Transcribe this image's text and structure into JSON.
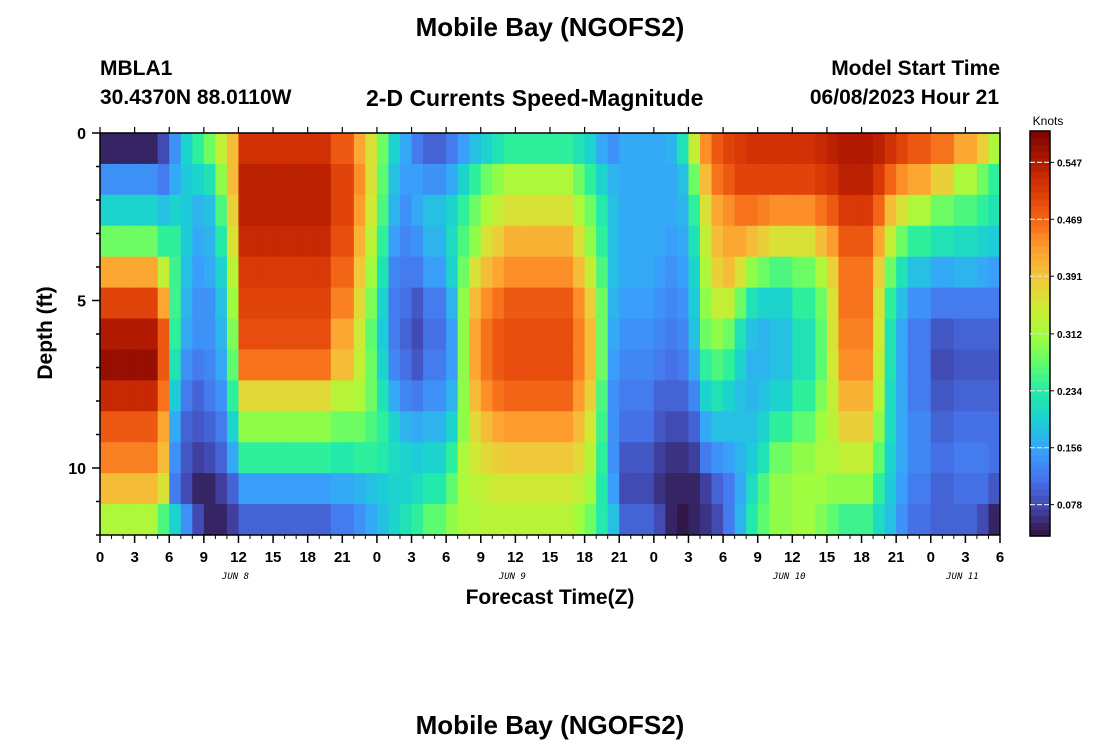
{
  "header": {
    "title": "Mobile Bay (NGOFS2)",
    "station_id": "MBLA1",
    "station_coords": "30.4370N  88.0110W",
    "chart_title": "2-D Currents Speed-Magnitude",
    "start_label": "Model Start Time",
    "start_value": "06/08/2023 Hour 21"
  },
  "footer": {
    "title": "Mobile Bay (NGOFS2)"
  },
  "colors": {
    "colormap": [
      "#30123b",
      "#4145ab",
      "#4675ed",
      "#39a2fc",
      "#1bcfd4",
      "#24eca6",
      "#61fc6c",
      "#a4fc3b",
      "#d1e834",
      "#f3c63a",
      "#fe9b2d",
      "#f36315",
      "#d93806",
      "#b11901",
      "#7a0402"
    ]
  },
  "chart_data": {
    "type": "heatmap",
    "title": "2-D Currents Speed-Magnitude",
    "xlabel": "Forecast Time(Z)",
    "ylabel": "Depth (ft)",
    "x_ticks": [
      "0",
      "3",
      "6",
      "9",
      "12",
      "15",
      "18",
      "21",
      "0",
      "3",
      "6",
      "9",
      "12",
      "15",
      "18",
      "21",
      "0",
      "3",
      "6",
      "9",
      "12",
      "15",
      "18",
      "21",
      "0",
      "3",
      "6"
    ],
    "date_labels": [
      {
        "label": "JUN 8",
        "hour": 12
      },
      {
        "label": "JUN 9",
        "hour": 36
      },
      {
        "label": "JUN 10",
        "hour": 60
      },
      {
        "label": "JUN 11",
        "hour": 75
      }
    ],
    "x_range": [
      0,
      78
    ],
    "y_ticks": [
      "0",
      "5",
      "10"
    ],
    "y_range": [
      0,
      12
    ],
    "colorbar": {
      "title": "Knots",
      "ticks": [
        "0.078",
        "0.156",
        "0.234",
        "0.312",
        "0.391",
        "0.469",
        "0.547"
      ],
      "range": [
        0.035,
        0.59
      ]
    },
    "depth_layers": 12,
    "hourly_columns": 78,
    "columns": [
      {
        "from": 0,
        "to": 5,
        "profile": [
          0.05,
          0.14,
          0.2,
          0.28,
          0.42,
          0.5,
          0.55,
          0.57,
          0.53,
          0.48,
          0.45,
          0.4,
          0.32
        ]
      },
      {
        "from": 5,
        "to": 6,
        "profile": [
          0.08,
          0.12,
          0.18,
          0.24,
          0.34,
          0.42,
          0.48,
          0.48,
          0.46,
          0.42,
          0.4,
          0.36,
          0.26
        ]
      },
      {
        "from": 6,
        "to": 7,
        "profile": [
          0.14,
          0.16,
          0.2,
          0.24,
          0.25,
          0.25,
          0.24,
          0.22,
          0.19,
          0.16,
          0.14,
          0.12,
          0.2
        ]
      },
      {
        "from": 7,
        "to": 8,
        "profile": [
          0.2,
          0.19,
          0.19,
          0.19,
          0.18,
          0.17,
          0.16,
          0.14,
          0.12,
          0.1,
          0.09,
          0.08,
          0.14
        ]
      },
      {
        "from": 8,
        "to": 9,
        "profile": [
          0.24,
          0.2,
          0.17,
          0.16,
          0.15,
          0.14,
          0.14,
          0.12,
          0.1,
          0.09,
          0.07,
          0.05,
          0.08
        ]
      },
      {
        "from": 9,
        "to": 10,
        "profile": [
          0.28,
          0.22,
          0.18,
          0.17,
          0.16,
          0.14,
          0.14,
          0.13,
          0.12,
          0.1,
          0.08,
          0.05,
          0.05
        ]
      },
      {
        "from": 10,
        "to": 11,
        "profile": [
          0.34,
          0.3,
          0.26,
          0.23,
          0.2,
          0.18,
          0.17,
          0.16,
          0.14,
          0.12,
          0.1,
          0.07,
          0.05
        ]
      },
      {
        "from": 11,
        "to": 12,
        "profile": [
          0.4,
          0.4,
          0.38,
          0.36,
          0.33,
          0.31,
          0.29,
          0.27,
          0.24,
          0.2,
          0.16,
          0.1,
          0.07
        ]
      },
      {
        "from": 12,
        "to": 20,
        "profile": [
          0.52,
          0.54,
          0.54,
          0.53,
          0.51,
          0.5,
          0.49,
          0.46,
          0.37,
          0.3,
          0.24,
          0.15,
          0.1
        ]
      },
      {
        "from": 20,
        "to": 22,
        "profile": [
          0.48,
          0.5,
          0.5,
          0.49,
          0.47,
          0.45,
          0.42,
          0.4,
          0.33,
          0.28,
          0.23,
          0.16,
          0.12
        ]
      },
      {
        "from": 22,
        "to": 23,
        "profile": [
          0.42,
          0.44,
          0.43,
          0.41,
          0.39,
          0.37,
          0.35,
          0.34,
          0.32,
          0.28,
          0.24,
          0.17,
          0.14
        ]
      },
      {
        "from": 23,
        "to": 24,
        "profile": [
          0.36,
          0.36,
          0.35,
          0.33,
          0.31,
          0.29,
          0.27,
          0.28,
          0.28,
          0.26,
          0.24,
          0.18,
          0.16
        ]
      },
      {
        "from": 24,
        "to": 25,
        "profile": [
          0.28,
          0.27,
          0.26,
          0.24,
          0.22,
          0.2,
          0.19,
          0.2,
          0.22,
          0.24,
          0.23,
          0.19,
          0.18
        ]
      },
      {
        "from": 25,
        "to": 26,
        "profile": [
          0.2,
          0.18,
          0.17,
          0.15,
          0.13,
          0.12,
          0.12,
          0.13,
          0.16,
          0.2,
          0.21,
          0.2,
          0.2
        ]
      },
      {
        "from": 26,
        "to": 27,
        "profile": [
          0.16,
          0.15,
          0.14,
          0.13,
          0.12,
          0.11,
          0.1,
          0.11,
          0.13,
          0.17,
          0.2,
          0.2,
          0.22
        ]
      },
      {
        "from": 27,
        "to": 28,
        "profile": [
          0.12,
          0.15,
          0.16,
          0.14,
          0.12,
          0.09,
          0.08,
          0.09,
          0.12,
          0.16,
          0.19,
          0.21,
          0.24
        ]
      },
      {
        "from": 28,
        "to": 30,
        "profile": [
          0.1,
          0.14,
          0.18,
          0.17,
          0.15,
          0.12,
          0.11,
          0.12,
          0.14,
          0.17,
          0.2,
          0.23,
          0.27
        ]
      },
      {
        "from": 30,
        "to": 31,
        "profile": [
          0.12,
          0.16,
          0.2,
          0.21,
          0.2,
          0.17,
          0.15,
          0.15,
          0.17,
          0.2,
          0.24,
          0.27,
          0.3
        ]
      },
      {
        "from": 31,
        "to": 32,
        "profile": [
          0.15,
          0.2,
          0.24,
          0.26,
          0.28,
          0.3,
          0.3,
          0.3,
          0.3,
          0.3,
          0.32,
          0.32,
          0.32
        ]
      },
      {
        "from": 32,
        "to": 33,
        "profile": [
          0.18,
          0.24,
          0.28,
          0.3,
          0.36,
          0.4,
          0.42,
          0.42,
          0.4,
          0.37,
          0.35,
          0.33,
          0.32
        ]
      },
      {
        "from": 33,
        "to": 34,
        "profile": [
          0.2,
          0.28,
          0.32,
          0.36,
          0.4,
          0.44,
          0.46,
          0.46,
          0.44,
          0.4,
          0.37,
          0.34,
          0.33
        ]
      },
      {
        "from": 34,
        "to": 35,
        "profile": [
          0.22,
          0.3,
          0.34,
          0.38,
          0.42,
          0.46,
          0.48,
          0.48,
          0.46,
          0.42,
          0.38,
          0.35,
          0.33
        ]
      },
      {
        "from": 35,
        "to": 41,
        "profile": [
          0.24,
          0.32,
          0.36,
          0.41,
          0.44,
          0.48,
          0.49,
          0.49,
          0.47,
          0.43,
          0.39,
          0.35,
          0.33
        ]
      },
      {
        "from": 41,
        "to": 42,
        "profile": [
          0.22,
          0.28,
          0.32,
          0.36,
          0.4,
          0.44,
          0.45,
          0.45,
          0.43,
          0.4,
          0.37,
          0.34,
          0.31
        ]
      },
      {
        "from": 42,
        "to": 43,
        "profile": [
          0.2,
          0.24,
          0.28,
          0.3,
          0.34,
          0.38,
          0.4,
          0.4,
          0.38,
          0.35,
          0.33,
          0.31,
          0.28
        ]
      },
      {
        "from": 43,
        "to": 44,
        "profile": [
          0.16,
          0.2,
          0.23,
          0.24,
          0.26,
          0.28,
          0.28,
          0.28,
          0.26,
          0.25,
          0.24,
          0.23,
          0.23
        ]
      },
      {
        "from": 44,
        "to": 45,
        "profile": [
          0.14,
          0.17,
          0.18,
          0.18,
          0.18,
          0.17,
          0.16,
          0.15,
          0.14,
          0.14,
          0.14,
          0.15,
          0.18
        ]
      },
      {
        "from": 45,
        "to": 48,
        "profile": [
          0.16,
          0.16,
          0.16,
          0.16,
          0.16,
          0.15,
          0.14,
          0.13,
          0.12,
          0.11,
          0.09,
          0.08,
          0.1
        ]
      },
      {
        "from": 48,
        "to": 49,
        "profile": [
          0.16,
          0.16,
          0.16,
          0.16,
          0.15,
          0.14,
          0.13,
          0.12,
          0.1,
          0.09,
          0.07,
          0.06,
          0.08
        ]
      },
      {
        "from": 49,
        "to": 50,
        "profile": [
          0.17,
          0.16,
          0.16,
          0.15,
          0.14,
          0.13,
          0.12,
          0.11,
          0.1,
          0.08,
          0.06,
          0.05,
          0.05
        ]
      },
      {
        "from": 50,
        "to": 51,
        "profile": [
          0.22,
          0.18,
          0.17,
          0.16,
          0.15,
          0.14,
          0.13,
          0.12,
          0.1,
          0.08,
          0.06,
          0.05,
          0.04
        ]
      },
      {
        "from": 51,
        "to": 52,
        "profile": [
          0.34,
          0.28,
          0.24,
          0.22,
          0.2,
          0.19,
          0.18,
          0.16,
          0.13,
          0.1,
          0.07,
          0.05,
          0.05
        ]
      },
      {
        "from": 52,
        "to": 53,
        "profile": [
          0.44,
          0.4,
          0.36,
          0.34,
          0.32,
          0.3,
          0.28,
          0.24,
          0.2,
          0.16,
          0.12,
          0.07,
          0.06
        ]
      },
      {
        "from": 53,
        "to": 54,
        "profile": [
          0.48,
          0.46,
          0.42,
          0.4,
          0.38,
          0.34,
          0.3,
          0.26,
          0.22,
          0.18,
          0.14,
          0.1,
          0.08
        ]
      },
      {
        "from": 54,
        "to": 55,
        "profile": [
          0.5,
          0.48,
          0.44,
          0.42,
          0.4,
          0.34,
          0.28,
          0.24,
          0.2,
          0.18,
          0.15,
          0.12,
          0.12
        ]
      },
      {
        "from": 55,
        "to": 56,
        "profile": [
          0.51,
          0.5,
          0.46,
          0.42,
          0.36,
          0.28,
          0.22,
          0.2,
          0.18,
          0.18,
          0.17,
          0.16,
          0.17
        ]
      },
      {
        "from": 56,
        "to": 57,
        "profile": [
          0.52,
          0.5,
          0.46,
          0.4,
          0.3,
          0.22,
          0.18,
          0.17,
          0.17,
          0.18,
          0.19,
          0.21,
          0.23
        ]
      },
      {
        "from": 57,
        "to": 58,
        "profile": [
          0.52,
          0.5,
          0.45,
          0.38,
          0.28,
          0.2,
          0.17,
          0.17,
          0.18,
          0.2,
          0.22,
          0.26,
          0.27
        ]
      },
      {
        "from": 58,
        "to": 60,
        "profile": [
          0.52,
          0.5,
          0.44,
          0.36,
          0.26,
          0.2,
          0.18,
          0.18,
          0.2,
          0.24,
          0.28,
          0.3,
          0.3
        ]
      },
      {
        "from": 60,
        "to": 62,
        "profile": [
          0.52,
          0.5,
          0.44,
          0.36,
          0.28,
          0.24,
          0.22,
          0.22,
          0.24,
          0.27,
          0.3,
          0.31,
          0.31
        ]
      },
      {
        "from": 62,
        "to": 63,
        "profile": [
          0.53,
          0.51,
          0.46,
          0.4,
          0.32,
          0.28,
          0.27,
          0.27,
          0.29,
          0.31,
          0.32,
          0.31,
          0.29
        ]
      },
      {
        "from": 63,
        "to": 64,
        "profile": [
          0.54,
          0.52,
          0.48,
          0.43,
          0.38,
          0.36,
          0.36,
          0.35,
          0.34,
          0.33,
          0.32,
          0.3,
          0.27
        ]
      },
      {
        "from": 64,
        "to": 67,
        "profile": [
          0.55,
          0.54,
          0.51,
          0.48,
          0.46,
          0.46,
          0.45,
          0.44,
          0.41,
          0.38,
          0.34,
          0.3,
          0.25
        ]
      },
      {
        "from": 67,
        "to": 68,
        "profile": [
          0.54,
          0.51,
          0.47,
          0.42,
          0.38,
          0.36,
          0.35,
          0.34,
          0.32,
          0.3,
          0.27,
          0.24,
          0.21
        ]
      },
      {
        "from": 68,
        "to": 69,
        "profile": [
          0.52,
          0.47,
          0.4,
          0.34,
          0.28,
          0.24,
          0.22,
          0.22,
          0.21,
          0.21,
          0.2,
          0.19,
          0.18
        ]
      },
      {
        "from": 69,
        "to": 70,
        "profile": [
          0.5,
          0.44,
          0.36,
          0.28,
          0.22,
          0.18,
          0.16,
          0.16,
          0.16,
          0.16,
          0.16,
          0.15,
          0.14
        ]
      },
      {
        "from": 70,
        "to": 72,
        "profile": [
          0.48,
          0.42,
          0.32,
          0.24,
          0.18,
          0.14,
          0.12,
          0.12,
          0.12,
          0.13,
          0.13,
          0.12,
          0.11
        ]
      },
      {
        "from": 72,
        "to": 74,
        "profile": [
          0.46,
          0.38,
          0.28,
          0.22,
          0.16,
          0.12,
          0.09,
          0.08,
          0.09,
          0.1,
          0.11,
          0.1,
          0.1
        ]
      },
      {
        "from": 74,
        "to": 76,
        "profile": [
          0.42,
          0.32,
          0.26,
          0.21,
          0.17,
          0.12,
          0.1,
          0.09,
          0.1,
          0.11,
          0.12,
          0.11,
          0.1
        ]
      },
      {
        "from": 76,
        "to": 77,
        "profile": [
          0.38,
          0.28,
          0.24,
          0.2,
          0.16,
          0.12,
          0.1,
          0.09,
          0.1,
          0.11,
          0.12,
          0.11,
          0.08
        ]
      },
      {
        "from": 77,
        "to": 78,
        "profile": [
          0.32,
          0.24,
          0.22,
          0.19,
          0.15,
          0.12,
          0.1,
          0.09,
          0.1,
          0.11,
          0.11,
          0.09,
          0.05
        ]
      }
    ]
  }
}
